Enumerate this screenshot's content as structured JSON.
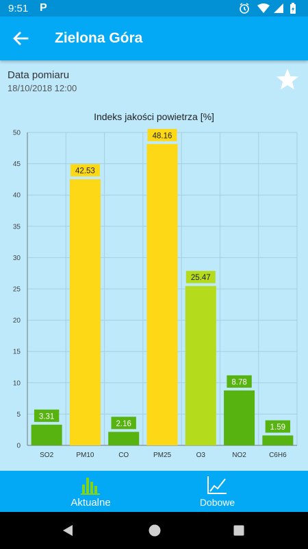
{
  "status": {
    "time": "9:51",
    "app_badge": "P"
  },
  "header": {
    "title": "Zielona Góra",
    "back_icon": "arrow-left-icon"
  },
  "measurement": {
    "label": "Data pomiaru",
    "date": "18/10/2018 12:00",
    "favorite_icon": "star-icon"
  },
  "chart_data": {
    "type": "bar",
    "title": "Indeks jakości powietrza [%]",
    "categories": [
      "SO2",
      "PM10",
      "CO",
      "PM25",
      "O3",
      "NO2",
      "C6H6"
    ],
    "values": [
      3.31,
      42.53,
      2.16,
      48.16,
      25.47,
      8.78,
      1.59
    ],
    "value_labels": [
      "3.31",
      "42.53",
      "2.16",
      "48.16",
      "25.47",
      "8.78",
      "1.59"
    ],
    "ylim": [
      0,
      50
    ],
    "yticks": [
      "0",
      "5",
      "10",
      "15",
      "20",
      "25",
      "30",
      "35",
      "40",
      "45",
      "50"
    ],
    "grid": true,
    "colors": [
      "#56b310",
      "#fdd817",
      "#56b310",
      "#fdd817",
      "#b4dc1c",
      "#56b310",
      "#56b310"
    ]
  },
  "bottom_nav": {
    "items": [
      {
        "label": "Aktualne",
        "icon": "bar-chart-icon",
        "active": true
      },
      {
        "label": "Dobowe",
        "icon": "line-chart-icon",
        "active": false
      }
    ]
  }
}
